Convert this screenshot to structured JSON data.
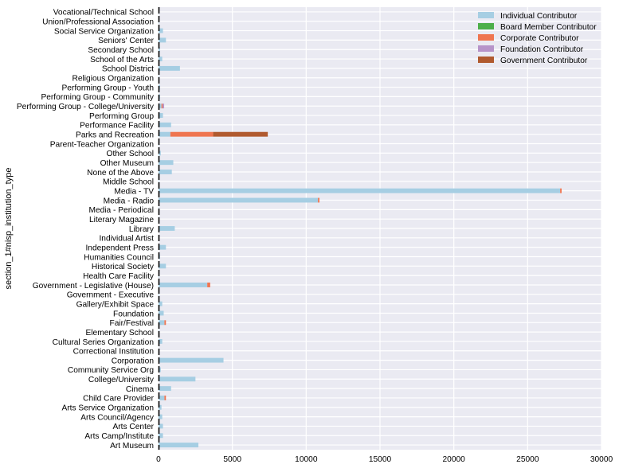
{
  "chart_data": {
    "type": "bar",
    "orientation": "horizontal",
    "stacked": true,
    "title": "",
    "xlabel": "",
    "ylabel": "section_1#nisp_institution_type",
    "xlim": [
      0,
      30000
    ],
    "xticks": [
      0,
      5000,
      10000,
      15000,
      20000,
      25000,
      30000
    ],
    "xtick_labels": [
      "0",
      "5000",
      "10000",
      "15000",
      "20000",
      "25000",
      "30000"
    ],
    "grid": true,
    "legend_position": "top-right",
    "categories": [
      "Art Museum",
      "Arts Camp/Institute",
      "Arts Center",
      "Arts Council/Agency",
      "Arts Service Organization",
      "Child Care Provider",
      "Cinema",
      "College/University",
      "Community Service Org",
      "Corporation",
      "Correctional Institution",
      "Cultural Series Organization",
      "Elementary School",
      "Fair/Festival",
      "Foundation",
      "Gallery/Exhibit Space",
      "Government - Executive",
      "Government - Legislative (House)",
      "Health Care Facility",
      "Historical Society",
      "Humanities Council",
      "Independent Press",
      "Individual Artist",
      "Library",
      "Literary Magazine",
      "Media - Periodical",
      "Media - Radio",
      "Media - TV",
      "Middle School",
      "None of the Above",
      "Other Museum",
      "Other School",
      "Parent-Teacher Organization",
      "Parks and Recreation",
      "Performance Facility",
      "Performing Group",
      "Performing Group - College/University",
      "Performing Group - Community",
      "Performing Group - Youth",
      "Religious Organization",
      "School District",
      "School of the Arts",
      "Secondary School",
      "Seniors' Center",
      "Social Service Organization",
      "Union/Professional Association",
      "Vocational/Technical School"
    ],
    "series": [
      {
        "name": "Individual Contributor",
        "color": "#a6cee3",
        "values": [
          2700,
          300,
          300,
          250,
          200,
          400,
          850,
          2500,
          150,
          4400,
          20,
          250,
          20,
          400,
          350,
          250,
          20,
          3300,
          20,
          500,
          100,
          500,
          20,
          1100,
          20,
          20,
          10800,
          27200,
          20,
          900,
          1000,
          150,
          20,
          800,
          850,
          300,
          200,
          100,
          100,
          20,
          1450,
          250,
          100,
          500,
          300,
          20,
          20
        ]
      },
      {
        "name": "Board Member Contributor",
        "color": "#4daf4a",
        "values": [
          0,
          0,
          0,
          0,
          0,
          0,
          0,
          0,
          0,
          0,
          0,
          0,
          0,
          0,
          0,
          0,
          0,
          0,
          0,
          0,
          0,
          0,
          0,
          0,
          0,
          0,
          0,
          0,
          0,
          0,
          0,
          0,
          0,
          0,
          0,
          0,
          0,
          0,
          0,
          0,
          0,
          0,
          0,
          0,
          0,
          0,
          0
        ]
      },
      {
        "name": "Corporate Contributor",
        "color": "#ef7550",
        "values": [
          0,
          0,
          0,
          0,
          0,
          100,
          0,
          0,
          0,
          0,
          0,
          0,
          0,
          100,
          0,
          0,
          0,
          200,
          0,
          0,
          0,
          0,
          20,
          0,
          0,
          0,
          100,
          100,
          0,
          0,
          0,
          0,
          0,
          2900,
          0,
          0,
          80,
          0,
          0,
          0,
          0,
          0,
          0,
          0,
          0,
          0,
          0
        ]
      },
      {
        "name": "Foundation Contributor",
        "color": "#b794c9",
        "values": [
          0,
          0,
          0,
          0,
          0,
          0,
          0,
          0,
          0,
          0,
          0,
          0,
          0,
          0,
          0,
          0,
          0,
          0,
          0,
          0,
          0,
          0,
          0,
          0,
          0,
          0,
          0,
          0,
          0,
          0,
          0,
          0,
          0,
          0,
          0,
          0,
          100,
          0,
          0,
          0,
          0,
          0,
          0,
          0,
          0,
          0,
          0
        ]
      },
      {
        "name": "Government Contributor",
        "color": "#b05a2f",
        "values": [
          0,
          0,
          0,
          0,
          0,
          0,
          0,
          0,
          0,
          0,
          0,
          0,
          0,
          0,
          0,
          0,
          0,
          0,
          0,
          0,
          0,
          0,
          0,
          0,
          0,
          0,
          0,
          0,
          0,
          0,
          0,
          0,
          0,
          3700,
          0,
          0,
          0,
          0,
          0,
          0,
          0,
          0,
          0,
          0,
          0,
          0,
          0
        ]
      }
    ]
  }
}
